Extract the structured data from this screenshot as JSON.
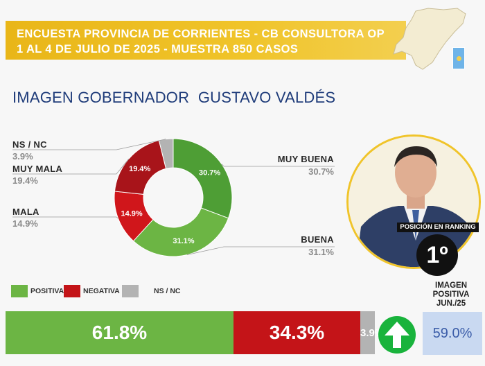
{
  "header": {
    "line1": "ENCUESTA PROVINCIA DE CORRIENTES - CB CONSULTORA OP",
    "line2": "1 AL 4 DE JULIO DE 2025 - MUESTRA 850 CASOS"
  },
  "title": "IMAGEN GOBERNADOR  GUSTAVO VALDÉS",
  "ranking": {
    "label": "POSICIÓN EN RANKING",
    "value": "1º"
  },
  "colors": {
    "positive": "#4e9e35",
    "positive_light": "#6cb544",
    "negative": "#c41418",
    "nsnc": "#b3b3b3",
    "header": "#f0c42a",
    "title": "#1f3c7a"
  },
  "chart_data": [
    {
      "type": "pie",
      "slices": [
        {
          "name": "MUY BUENA",
          "value": 30.7,
          "label": "30.7%",
          "color": "#4e9e35"
        },
        {
          "name": "BUENA",
          "value": 31.1,
          "label": "31.1%",
          "color": "#6cb544"
        },
        {
          "name": "MALA",
          "value": 14.9,
          "label": "14.9%",
          "color": "#d0161b"
        },
        {
          "name": "MUY MALA",
          "value": 19.4,
          "label": "19.4%",
          "color": "#a8141a"
        },
        {
          "name": "NS / NC",
          "value": 3.9,
          "label": "3.9%",
          "color": "#b3b3b3"
        }
      ]
    },
    {
      "type": "bar",
      "stacked": true,
      "legend": [
        "POSITIVA",
        "NEGATIVA",
        "NS / NC"
      ],
      "segments": [
        {
          "name": "POSITIVA",
          "value": 61.8,
          "label": "61.8%",
          "color": "#6cb544"
        },
        {
          "name": "NEGATIVA",
          "value": 34.3,
          "label": "34.3%",
          "color": "#c41418"
        },
        {
          "name": "NS / NC",
          "value": 3.9,
          "label": "3.9%",
          "color": "#b3b3b3"
        }
      ]
    }
  ],
  "comparison": {
    "title_line1": "IMAGEN",
    "title_line2": "POSITIVA",
    "title_line3": "JUN./25",
    "value": "59.0%",
    "trend_icon": "up-arrow-icon"
  }
}
